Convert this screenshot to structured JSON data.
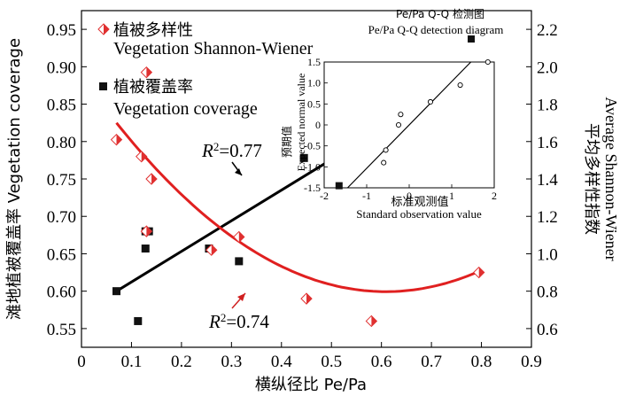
{
  "chart_data": [
    {
      "type": "scatter",
      "title": "",
      "xlabel": "横纵径比 Pe/Pa",
      "ylabel_left": "滩地植被覆盖率 Vegetation coverage",
      "ylabel_right_cn": "平均多样性指数",
      "ylabel_right_en": "Average Shannon-Wiener",
      "xlim": [
        0,
        0.9
      ],
      "ylim_left": [
        0.525,
        0.975
      ],
      "ylim_right": [
        0.5,
        2.3
      ],
      "x_ticks": [
        "0",
        "0.1",
        "0.2",
        "0.3",
        "0.4",
        "0.5",
        "0.6",
        "0.7",
        "0.8",
        "0.9"
      ],
      "x_tick_values": [
        0,
        0.1,
        0.2,
        0.3,
        0.4,
        0.5,
        0.6,
        0.7,
        0.8,
        0.9
      ],
      "y_left_ticks": [
        "0.55",
        "0.60",
        "0.65",
        "0.70",
        "0.75",
        "0.80",
        "0.85",
        "0.90",
        "0.95"
      ],
      "y_left_tick_values": [
        0.55,
        0.6,
        0.65,
        0.7,
        0.75,
        0.8,
        0.85,
        0.9,
        0.95
      ],
      "y_right_ticks": [
        "0.6",
        "0.8",
        "1.0",
        "1.2",
        "1.4",
        "1.6",
        "1.8",
        "2.0",
        "2.2"
      ],
      "y_right_tick_values": [
        0.6,
        0.8,
        1.0,
        1.2,
        1.4,
        1.6,
        1.8,
        2.0,
        2.2
      ],
      "legend": [
        {
          "marker": "half-diamond",
          "color": "#e03030",
          "label_cn": "植被多样性",
          "label_en": "Vegetation Shannon-Wiener"
        },
        {
          "marker": "square",
          "color": "#111111",
          "label_cn": "植被覆盖率",
          "label_en": "Vegetation coverage"
        }
      ],
      "series": [
        {
          "name": "Vegetation coverage",
          "axis": "left",
          "marker": "square",
          "color": "#111111",
          "x": [
            0.07,
            0.113,
            0.128,
            0.128,
            0.135,
            0.255,
            0.315,
            0.445
          ],
          "y": [
            0.6,
            0.56,
            0.68,
            0.657,
            0.68,
            0.657,
            0.64,
            0.778
          ]
        },
        {
          "name": "Vegetation Shannon-Wiener",
          "axis": "right",
          "marker": "half-diamond",
          "color": "#e03030",
          "x": [
            0.07,
            0.12,
            0.13,
            0.13,
            0.14,
            0.26,
            0.315,
            0.45,
            0.58,
            0.795
          ],
          "y": [
            1.61,
            1.52,
            1.12,
            1.97,
            1.4,
            1.02,
            1.09,
            0.76,
            0.64,
            0.9
          ]
        }
      ],
      "fits": [
        {
          "name": "coverage linear fit",
          "axis": "left",
          "color": "#000000",
          "kind": "linear",
          "x_range": [
            0.07,
            0.5
          ],
          "y_range": [
            0.6,
            0.776
          ],
          "r2_label": "R²=0.77"
        },
        {
          "name": "Shannon-Wiener quadratic fit",
          "axis": "right",
          "color": "#e02020",
          "kind": "quadratic",
          "x": [
            0.07,
            0.58,
            0.79
          ],
          "y": [
            1.7,
            0.8,
            0.9
          ],
          "r2_label": "R²=0.74"
        }
      ]
    },
    {
      "type": "scatter",
      "title_line1": "Pe/Pa Q-Q 检测图",
      "title_line2": "Pe/Pa Q-Q detection diagram",
      "xlabel_cn": "标准观测值",
      "xlabel_en": "Standard observation value",
      "ylabel_cn": "预期值",
      "ylabel_en": "Expected normal value",
      "xlim": [
        -2,
        2
      ],
      "ylim": [
        -1.5,
        1.5
      ],
      "x_ticks": [
        "-2",
        "-1",
        "0",
        "1",
        "2"
      ],
      "x_tick_values": [
        -2,
        -1,
        0,
        1,
        2
      ],
      "y_ticks": [
        "-1.5",
        "-1.0",
        "-0.5",
        "0",
        "0.5",
        "1.0",
        "1.5"
      ],
      "y_tick_values": [
        -1.5,
        -1,
        -0.5,
        0,
        0.5,
        1,
        1.5
      ],
      "points": {
        "x": [
          -1.65,
          -0.6,
          -0.55,
          -0.25,
          -0.2,
          0.5,
          1.2,
          1.85
        ],
        "y": [
          -1.45,
          -0.9,
          -0.6,
          0.0,
          0.25,
          0.55,
          0.95,
          1.5
        ]
      },
      "reference_line": {
        "x": [
          -1.45,
          1.45
        ],
        "y": [
          -1.5,
          1.5
        ]
      }
    }
  ]
}
